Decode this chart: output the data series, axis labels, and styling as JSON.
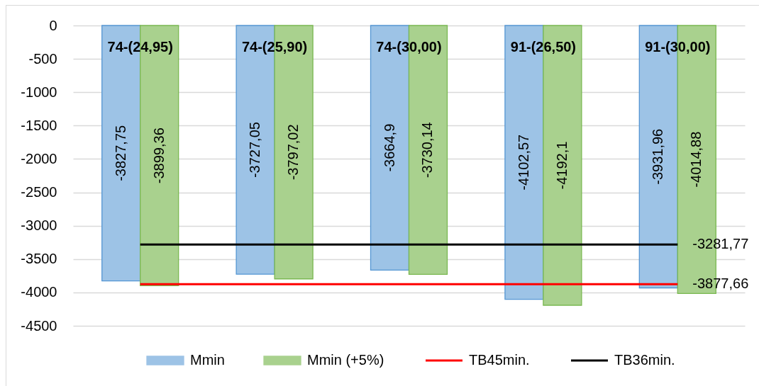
{
  "chart_data": {
    "type": "bar",
    "categories": [
      "74-(24,95)",
      "74-(25,90)",
      "74-(30,00)",
      "91-(26,50)",
      "91-(30,00)"
    ],
    "series": [
      {
        "name": "Mmin",
        "color": "#9dc3e6",
        "values": [
          -3827.75,
          -3727.05,
          -3664.9,
          -4102.57,
          -3931.96
        ],
        "value_labels": [
          "-3827,75",
          "-3727,05",
          "-3664,9",
          "-4102,57",
          "-3931,96"
        ]
      },
      {
        "name": "Mmin (+5%)",
        "color": "#a9d18e",
        "values": [
          -3899.36,
          -3797.02,
          -3730.14,
          -4192.1,
          -4014.88
        ],
        "value_labels": [
          "-3899,36",
          "-3797,02",
          "-3730,14",
          "-4192,1",
          "-4014,88"
        ]
      },
      {
        "name": "TB45min.",
        "type": "line",
        "color": "#ff0000",
        "values": [
          -3877.66,
          -3877.66,
          -3877.66,
          -3877.66,
          -3877.66
        ],
        "value_labels": [
          null,
          null,
          null,
          null,
          "-3877,66"
        ]
      },
      {
        "name": "TB36min.",
        "type": "line",
        "color": "#000000",
        "values": [
          -3281.77,
          -3281.77,
          -3281.77,
          -3281.77,
          -3281.77
        ],
        "value_labels": [
          null,
          null,
          null,
          null,
          "-3281,77"
        ]
      }
    ],
    "ylim": [
      -4500,
      0
    ],
    "yticks": [
      0,
      -500,
      -1000,
      -1500,
      -2000,
      -2500,
      -3000,
      -3500,
      -4000,
      -4500
    ],
    "grid": "y",
    "legend": "bottom"
  }
}
